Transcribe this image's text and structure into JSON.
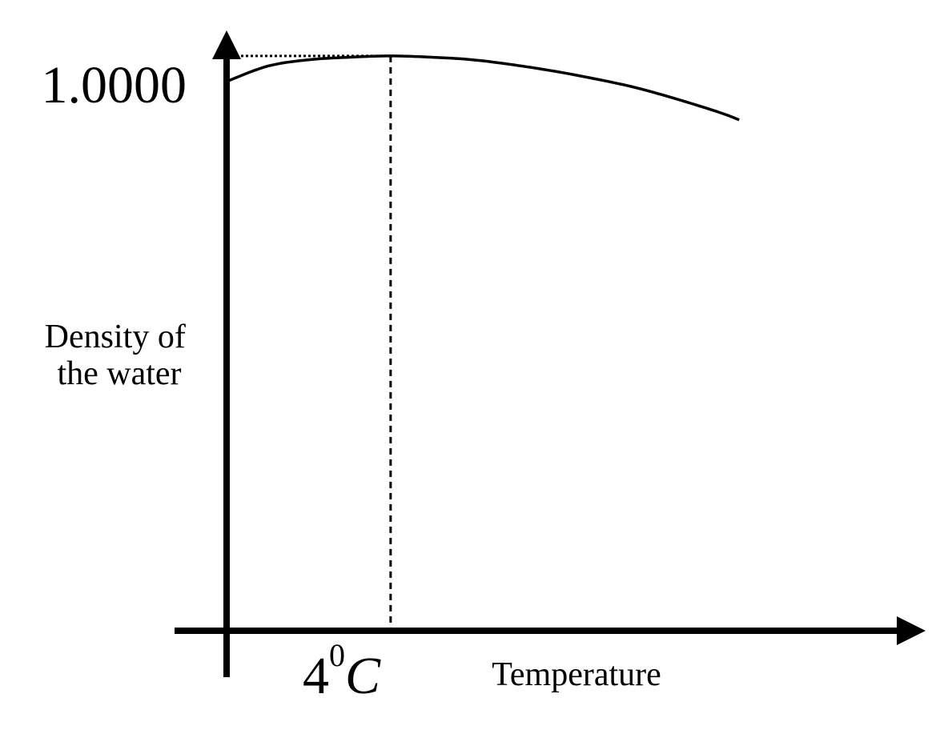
{
  "chart_data": {
    "type": "line",
    "title": "",
    "xlabel": "Temperature",
    "ylabel": [
      "Density of",
      "the water"
    ],
    "x_ticks": [
      {
        "x": 4,
        "base": "4",
        "sup": "0",
        "unit": "C"
      }
    ],
    "y_ticks": [
      {
        "y": 1.0,
        "label": "1.0000"
      }
    ],
    "reference_point": {
      "x": 4,
      "y": 1.0
    },
    "xlim": [
      0,
      16.5
    ],
    "ylim": [
      0.9955,
      1.0003
    ],
    "grid": false,
    "series": [
      {
        "values": [
          {
            "x": 0,
            "y": 0.9998
          },
          {
            "x": 1,
            "y": 0.99992
          },
          {
            "x": 2,
            "y": 0.99997
          },
          {
            "x": 3,
            "y": 0.99999
          },
          {
            "x": 4,
            "y": 1.0
          },
          {
            "x": 5,
            "y": 0.99999
          },
          {
            "x": 6,
            "y": 0.99997
          },
          {
            "x": 7,
            "y": 0.99993
          },
          {
            "x": 8,
            "y": 0.99988
          },
          {
            "x": 9,
            "y": 0.99982
          },
          {
            "x": 10,
            "y": 0.99975
          },
          {
            "x": 11,
            "y": 0.99966
          },
          {
            "x": 12,
            "y": 0.99956
          },
          {
            "x": 12.5,
            "y": 0.9995
          }
        ],
        "color": "#000000"
      }
    ]
  }
}
